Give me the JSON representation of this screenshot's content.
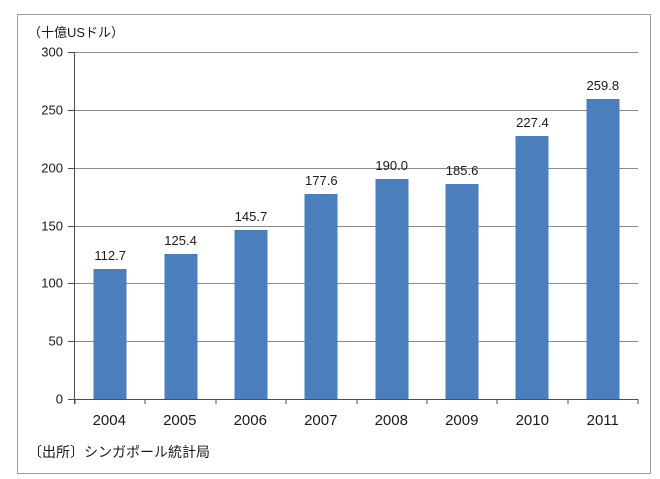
{
  "chart_data": {
    "type": "bar",
    "title": "（十億USドル）",
    "categories": [
      "2004",
      "2005",
      "2006",
      "2007",
      "2008",
      "2009",
      "2010",
      "2011"
    ],
    "values": [
      112.7,
      125.4,
      145.7,
      177.6,
      190.0,
      185.6,
      227.4,
      259.8
    ],
    "value_labels": [
      "112.7",
      "125.4",
      "145.7",
      "177.6",
      "190.0",
      "185.6",
      "227.4",
      "259.8"
    ],
    "y_tick_labels": [
      "300",
      "250",
      "200",
      "150",
      "100",
      "50",
      "0"
    ],
    "ylim": [
      0,
      300
    ],
    "grid": true,
    "legend": "none",
    "bar_color": "#4a7ebc",
    "gridline_color": "#8c8c8c",
    "axis_color": "#4d4d4d",
    "source": "〔出所〕シンガポール統計局"
  }
}
